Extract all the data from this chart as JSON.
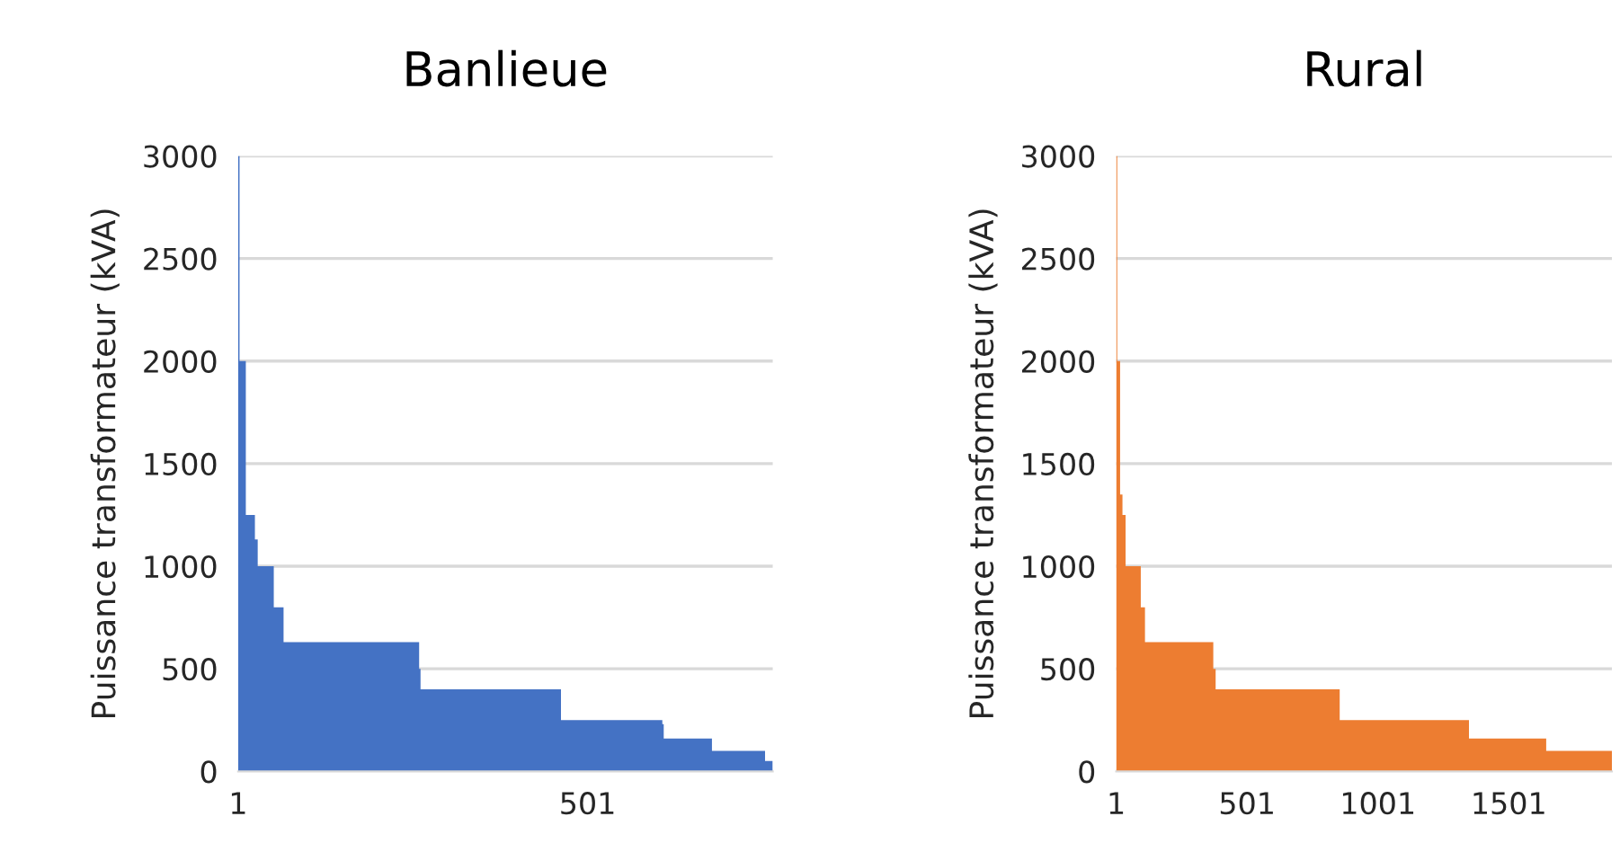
{
  "chart_data": [
    {
      "type": "area",
      "title": "Banlieue",
      "ylabel": "Puissance transformateur (kVA)",
      "x": [
        1,
        3,
        3,
        12,
        12,
        25,
        25,
        29,
        29,
        52,
        52,
        66,
        66,
        260,
        260,
        262,
        262,
        463,
        463,
        608,
        608,
        610,
        610,
        679,
        679,
        755,
        755,
        766
      ],
      "series": [
        {
          "color": "#4472c4",
          "values": [
            3000,
            3000,
            2000,
            2000,
            1250,
            1250,
            1130,
            1130,
            1000,
            1000,
            800,
            800,
            630,
            630,
            500,
            500,
            400,
            400,
            250,
            250,
            230,
            230,
            160,
            160,
            100,
            100,
            50,
            50
          ]
        }
      ],
      "xlim": [
        1,
        766
      ],
      "xticks": [
        1,
        501
      ],
      "ylim": [
        0,
        3000
      ],
      "yticks": [
        0,
        500,
        1000,
        1500,
        2000,
        2500,
        3000
      ],
      "grid": "y",
      "legend": false
    },
    {
      "type": "area",
      "title": "Rural",
      "ylabel": "Puissance transformateur (kVA)",
      "x": [
        1,
        5,
        5,
        16,
        16,
        25,
        25,
        37,
        37,
        95,
        95,
        111,
        111,
        372,
        372,
        381,
        381,
        855,
        855,
        1349,
        1349,
        1644,
        1644,
        1895
      ],
      "series": [
        {
          "color": "#ed7d31",
          "values": [
            3000,
            3000,
            2000,
            2000,
            1350,
            1350,
            1250,
            1250,
            1000,
            1000,
            800,
            800,
            630,
            630,
            500,
            500,
            400,
            400,
            250,
            250,
            160,
            160,
            100,
            100
          ]
        }
      ],
      "xlim": [
        1,
        1895
      ],
      "xticks": [
        1,
        501,
        1001,
        1501
      ],
      "ylim": [
        0,
        3000
      ],
      "yticks": [
        0,
        500,
        1000,
        1500,
        2000,
        2500,
        3000
      ],
      "grid": "y",
      "legend": false
    }
  ]
}
